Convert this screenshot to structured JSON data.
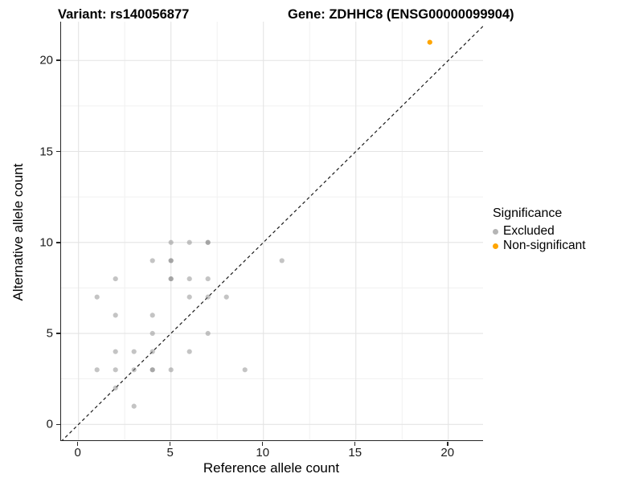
{
  "chart_data": {
    "type": "scatter",
    "titles": {
      "variant": "Variant: rs140056877",
      "gene": "Gene: ZDHHC8 (ENSG00000099904)"
    },
    "xlabel": "Reference allele count",
    "ylabel": "Alternative allele count",
    "xticks": [
      0,
      5,
      10,
      15,
      20
    ],
    "yticks": [
      0,
      5,
      10,
      15,
      20
    ],
    "xlim": [
      -0.943,
      21.88
    ],
    "ylim": [
      -0.87,
      22.13
    ],
    "minor_gridlines_x": [
      2.5,
      7.5,
      12.5,
      17.5
    ],
    "minor_gridlines_y": [
      2.5,
      7.5,
      12.5,
      17.5
    ],
    "grid": "major-and-minor",
    "gridline_major_color": "#e4e4e4",
    "gridline_minor_color": "#f1f1f1",
    "reference_line": {
      "type": "identity (y = x)",
      "style": "dashed",
      "color": "#1a1a1a"
    },
    "legend": {
      "title": "Significance",
      "position": "right",
      "entries": [
        {
          "label": "Excluded",
          "color": "#b5b5b5"
        },
        {
          "label": "Non-significant",
          "color": "#FFA500"
        }
      ]
    },
    "series": [
      {
        "name": "Excluded",
        "color": "#8a8a8a",
        "opacity": 0.5,
        "points": [
          [
            5,
            10
          ],
          [
            6,
            10
          ],
          [
            7,
            10
          ],
          [
            7,
            10
          ],
          [
            4,
            9
          ],
          [
            5,
            9
          ],
          [
            5,
            9
          ],
          [
            11,
            9
          ],
          [
            2,
            8
          ],
          [
            5,
            8
          ],
          [
            5,
            8
          ],
          [
            6,
            8
          ],
          [
            7,
            8
          ],
          [
            1,
            7
          ],
          [
            6,
            7
          ],
          [
            7,
            7
          ],
          [
            8,
            7
          ],
          [
            2,
            6
          ],
          [
            4,
            6
          ],
          [
            4,
            5
          ],
          [
            7,
            5
          ],
          [
            2,
            4
          ],
          [
            3,
            4
          ],
          [
            4,
            4
          ],
          [
            6,
            4
          ],
          [
            1,
            3
          ],
          [
            2,
            3
          ],
          [
            3,
            3
          ],
          [
            4,
            3
          ],
          [
            4,
            3
          ],
          [
            5,
            3
          ],
          [
            9,
            3
          ],
          [
            2,
            2
          ],
          [
            3,
            1
          ]
        ]
      },
      {
        "name": "Non-significant",
        "color": "#FFA500",
        "opacity": 1,
        "points": [
          [
            19,
            21
          ]
        ]
      }
    ]
  }
}
